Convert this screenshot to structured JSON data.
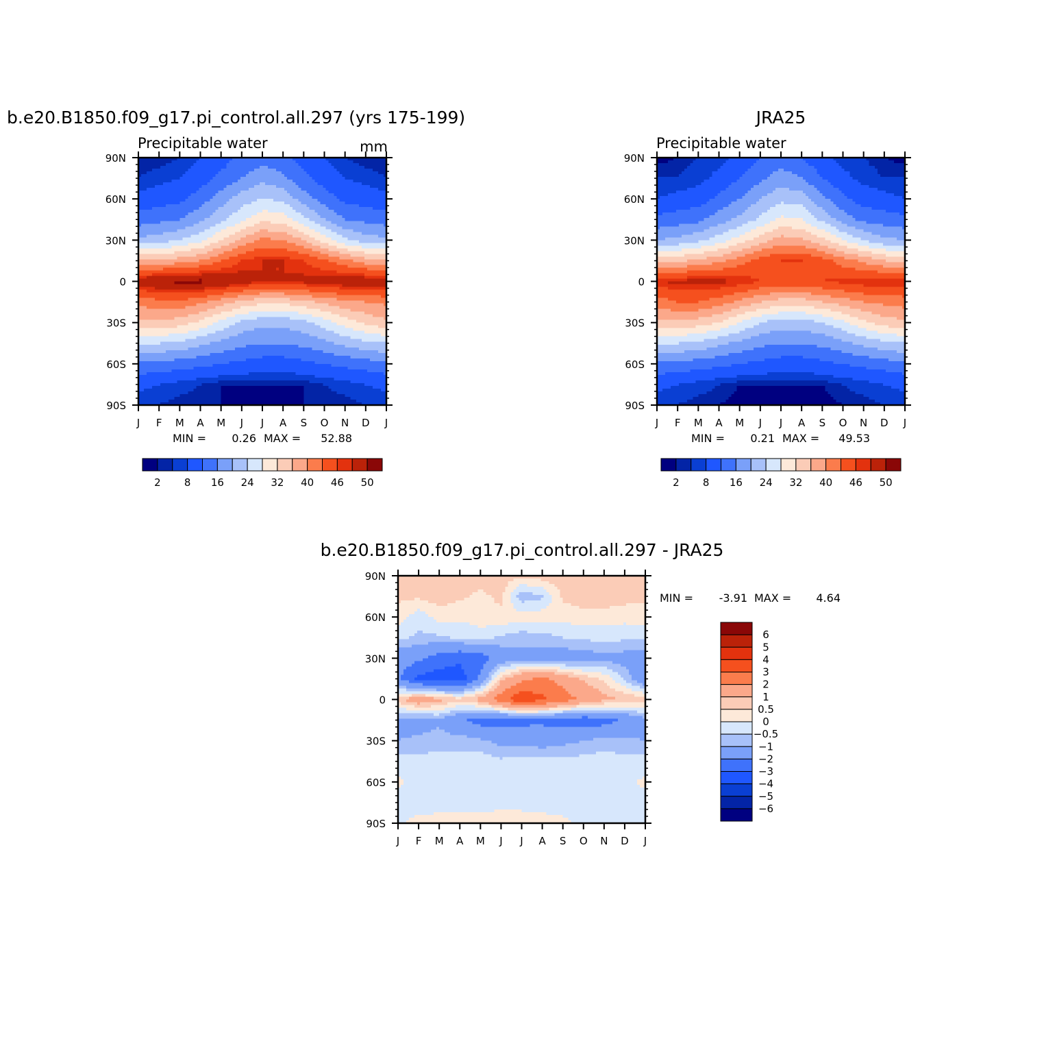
{
  "colors": {
    "abs_scale": [
      "#000080",
      "#0324a6",
      "#0a3fd3",
      "#1f57ff",
      "#3f72fb",
      "#7aa0f9",
      "#a8c1f9",
      "#d7e7fc",
      "#fde9d9",
      "#fbccb7",
      "#fba88a",
      "#fb7c4c",
      "#f5501e",
      "#e3320e",
      "#bb2209",
      "#8a0707"
    ],
    "diff_scale": [
      "#000080",
      "#0324a6",
      "#0a3fd3",
      "#1f57ff",
      "#3f72fb",
      "#7aa0f9",
      "#a8c1f9",
      "#d7e7fc",
      "#fde9d9",
      "#fbccb7",
      "#fba88a",
      "#fb7c4c",
      "#f5501e",
      "#e3320e",
      "#bb2209",
      "#8a0707"
    ]
  },
  "month_ticks": [
    "J",
    "F",
    "M",
    "A",
    "M",
    "J",
    "J",
    "A",
    "S",
    "O",
    "N",
    "D",
    "J"
  ],
  "lat_ticks": [
    "90N",
    "60N",
    "30N",
    "0",
    "30S",
    "60S",
    "90S"
  ],
  "chart_data": [
    {
      "type": "heatmap",
      "title": "b.e20.B1850.f09_g17.pi_control.all.297 (yrs 175-199)",
      "left_string": "Precipitable water",
      "right_string": "mm",
      "stats": {
        "min_label": "MIN =",
        "min": "0.26",
        "max_label": "MAX =",
        "max": "52.88"
      },
      "xrange": [
        "Jan",
        "Jan"
      ],
      "ylim": [
        -90,
        90
      ],
      "months": [
        "J",
        "F",
        "M",
        "A",
        "M",
        "J",
        "J",
        "A",
        "S",
        "O",
        "N",
        "D",
        "J"
      ],
      "latitudes": [
        90,
        75,
        60,
        45,
        30,
        15,
        0,
        -15,
        -30,
        -45,
        -60,
        -75,
        -90
      ],
      "values": [
        [
          1,
          1,
          2,
          4,
          6,
          9,
          10,
          9,
          6,
          4,
          2,
          1,
          1
        ],
        [
          2,
          3,
          4,
          6,
          9,
          12,
          15,
          13,
          9,
          6,
          4,
          3,
          2
        ],
        [
          5,
          6,
          7,
          10,
          14,
          18,
          20,
          19,
          14,
          10,
          7,
          6,
          5
        ],
        [
          10,
          11,
          12,
          15,
          19,
          23,
          27,
          26,
          21,
          16,
          12,
          11,
          10
        ],
        [
          17,
          18,
          20,
          23,
          28,
          33,
          37,
          36,
          32,
          26,
          21,
          18,
          17
        ],
        [
          32,
          33,
          34,
          36,
          40,
          44,
          46,
          46,
          44,
          41,
          37,
          34,
          32
        ],
        [
          49,
          50,
          51,
          51,
          50,
          48,
          46,
          46,
          47,
          48,
          49,
          49,
          49
        ],
        [
          37,
          39,
          39,
          37,
          34,
          31,
          29,
          29,
          31,
          33,
          35,
          36,
          37
        ],
        [
          31,
          31,
          30,
          27,
          23,
          19,
          17,
          17,
          19,
          22,
          26,
          29,
          31
        ],
        [
          20,
          20,
          19,
          17,
          15,
          13,
          12,
          12,
          13,
          15,
          17,
          19,
          20
        ],
        [
          11,
          11,
          10,
          9,
          8,
          7,
          6,
          6,
          7,
          8,
          9,
          10,
          11
        ],
        [
          5,
          4,
          3,
          2,
          1,
          1,
          1,
          1,
          1,
          2,
          3,
          4,
          5
        ],
        [
          2,
          2,
          1,
          1,
          1,
          0.5,
          0.5,
          0.5,
          1,
          1,
          1,
          2,
          2
        ]
      ],
      "colorbar": {
        "levels": [
          1,
          2,
          4,
          8,
          12,
          16,
          20,
          24,
          28,
          32,
          36,
          40,
          44,
          46,
          50
        ],
        "labels": [
          "2",
          "8",
          "16",
          "24",
          "32",
          "40",
          "46",
          "50"
        ],
        "orientation": "horizontal"
      }
    },
    {
      "type": "heatmap",
      "title": "JRA25",
      "left_string": "Precipitable water",
      "stats": {
        "min_label": "MIN =",
        "min": "0.21",
        "max_label": "MAX =",
        "max": "49.53"
      },
      "xrange": [
        "Jan",
        "Jan"
      ],
      "ylim": [
        -90,
        90
      ],
      "months": [
        "J",
        "F",
        "M",
        "A",
        "M",
        "J",
        "J",
        "A",
        "S",
        "O",
        "N",
        "D",
        "J"
      ],
      "latitudes": [
        90,
        75,
        60,
        45,
        30,
        15,
        0,
        -15,
        -30,
        -45,
        -60,
        -75,
        -90
      ],
      "values": [
        [
          0.5,
          1,
          2,
          3,
          5,
          8,
          10,
          8,
          5,
          3,
          2,
          1,
          0.5
        ],
        [
          2,
          2,
          3,
          5,
          8,
          11,
          14,
          12,
          8,
          5,
          3,
          2,
          2
        ],
        [
          4,
          5,
          6,
          9,
          12,
          16,
          19,
          18,
          13,
          9,
          6,
          5,
          4
        ],
        [
          9,
          10,
          11,
          14,
          17,
          21,
          25,
          24,
          19,
          14,
          11,
          10,
          9
        ],
        [
          16,
          17,
          19,
          22,
          26,
          30,
          34,
          33,
          29,
          24,
          20,
          17,
          16
        ],
        [
          30,
          31,
          33,
          35,
          38,
          42,
          44,
          44,
          42,
          38,
          35,
          32,
          30
        ],
        [
          46,
          47,
          47,
          47,
          46,
          44,
          43,
          43,
          44,
          45,
          46,
          46,
          46
        ],
        [
          38,
          40,
          40,
          38,
          35,
          32,
          30,
          30,
          32,
          34,
          36,
          37,
          38
        ],
        [
          31,
          31,
          30,
          28,
          24,
          20,
          18,
          18,
          20,
          23,
          27,
          30,
          31
        ],
        [
          20,
          20,
          19,
          17,
          15,
          13,
          12,
          12,
          13,
          15,
          17,
          19,
          20
        ],
        [
          11,
          11,
          10,
          9,
          8,
          7,
          6,
          6,
          7,
          8,
          9,
          10,
          11
        ],
        [
          5,
          4,
          3,
          2,
          1,
          1,
          1,
          1,
          1,
          2,
          3,
          4,
          5
        ],
        [
          2,
          2,
          1,
          1,
          0.5,
          0.5,
          0.5,
          0.5,
          0.5,
          1,
          1,
          2,
          2
        ]
      ],
      "colorbar": {
        "levels": [
          1,
          2,
          4,
          8,
          12,
          16,
          20,
          24,
          28,
          32,
          36,
          40,
          44,
          46,
          50
        ],
        "labels": [
          "2",
          "8",
          "16",
          "24",
          "32",
          "40",
          "46",
          "50"
        ],
        "orientation": "horizontal"
      }
    },
    {
      "type": "heatmap",
      "title": "b.e20.B1850.f09_g17.pi_control.all.297 - JRA25",
      "stats": {
        "min_label": "MIN =",
        "min": "-3.91",
        "max_label": "MAX =",
        "max": "4.64"
      },
      "xrange": [
        "Jan",
        "Jan"
      ],
      "ylim": [
        -90,
        90
      ],
      "months": [
        "J",
        "F",
        "M",
        "A",
        "M",
        "J",
        "J",
        "A",
        "S",
        "O",
        "N",
        "D",
        "J"
      ],
      "latitudes": [
        90,
        75,
        60,
        45,
        30,
        15,
        0,
        -15,
        -30,
        -45,
        -60,
        -75,
        -90
      ],
      "values": [
        [
          0.7,
          0.7,
          0.6,
          0.6,
          0.7,
          0.8,
          0.6,
          0.8,
          0.9,
          0.8,
          0.6,
          0.7,
          0.7
        ],
        [
          0.6,
          0.6,
          0.8,
          0.6,
          0.4,
          0.6,
          -0.8,
          -0.6,
          0.6,
          0.8,
          0.9,
          0.7,
          0.6
        ],
        [
          0.3,
          -0.3,
          0.2,
          0.1,
          0.3,
          0.4,
          0.2,
          0.3,
          0.2,
          0.3,
          0.2,
          0.2,
          0.3
        ],
        [
          -0.4,
          -0.6,
          -0.6,
          -0.4,
          -0.3,
          -0.6,
          -0.8,
          -0.7,
          -0.5,
          -0.4,
          -0.3,
          -0.4,
          -0.4
        ],
        [
          -1.5,
          -1.8,
          -2.4,
          -2.8,
          -2.5,
          -1.6,
          -1.2,
          -1.3,
          -1.5,
          -1.4,
          -1.2,
          -1.3,
          -1.5
        ],
        [
          -1.8,
          -3.2,
          -3.6,
          -3.5,
          -1.8,
          0.8,
          1.8,
          2.2,
          1.6,
          0.9,
          0.4,
          -0.6,
          -1.8
        ],
        [
          0.8,
          1.6,
          1.2,
          0.7,
          1.3,
          2.6,
          3.8,
          3.2,
          2.5,
          1.8,
          1.2,
          1.0,
          0.8
        ],
        [
          -1.2,
          -1.3,
          -1.1,
          -1.8,
          -2.4,
          -2.5,
          -2.3,
          -2.2,
          -2.5,
          -2.6,
          -2.4,
          -1.8,
          -1.2
        ],
        [
          -1.0,
          -0.9,
          -0.8,
          -0.7,
          -0.9,
          -1.2,
          -1.2,
          -1.4,
          -1.2,
          -1.0,
          -0.8,
          -0.9,
          -1.0
        ],
        [
          -0.3,
          -0.3,
          -0.2,
          -0.3,
          -0.2,
          -0.4,
          -0.3,
          -0.3,
          -0.3,
          -0.3,
          -0.2,
          -0.3,
          -0.3
        ],
        [
          0.1,
          -0.2,
          -0.1,
          -0.2,
          -0.2,
          -0.1,
          -0.2,
          -0.2,
          -0.1,
          -0.2,
          -0.2,
          -0.1,
          0.1
        ],
        [
          -0.2,
          -0.3,
          -0.2,
          -0.2,
          -0.2,
          -0.1,
          -0.2,
          -0.2,
          -0.2,
          -0.3,
          -0.2,
          -0.3,
          -0.2
        ],
        [
          -0.1,
          0.2,
          0.2,
          0.2,
          0.2,
          0.2,
          0.3,
          0.2,
          0.1,
          -0.1,
          -0.2,
          -0.1,
          -0.1
        ]
      ],
      "colorbar": {
        "levels": [
          -6,
          -5,
          -4,
          -3,
          -2,
          -1,
          -0.5,
          0,
          0.5,
          1,
          2,
          3,
          4,
          5,
          6
        ],
        "labels": [
          "6",
          "5",
          "4",
          "3",
          "2",
          "1",
          "0.5",
          "0",
          "−0.5",
          "−1",
          "−2",
          "−3",
          "−4",
          "−5",
          "−6"
        ],
        "orientation": "vertical"
      }
    }
  ]
}
